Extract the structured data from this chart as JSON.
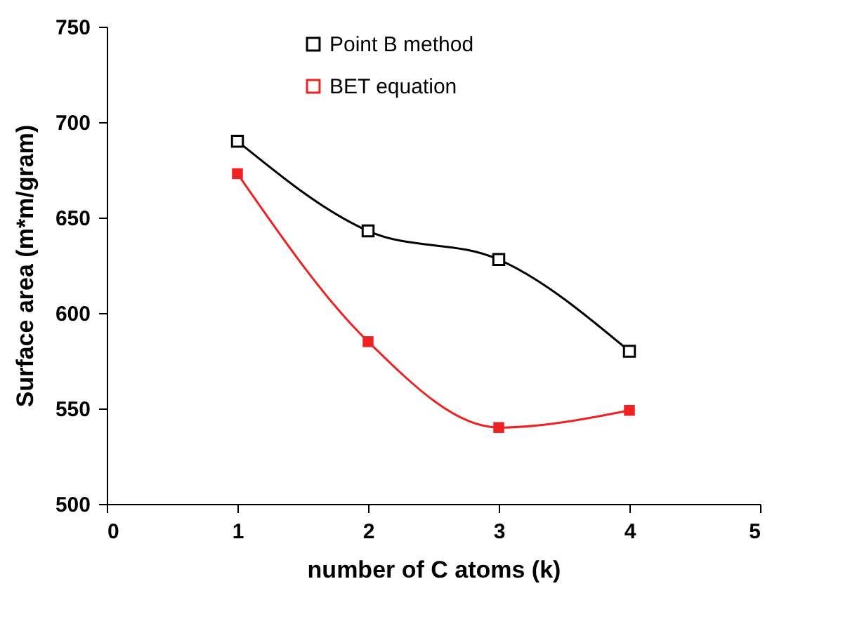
{
  "chart_data": {
    "type": "line",
    "xlabel": "number of C atoms (k)",
    "ylabel": "Surface area (m*m/gram)",
    "x": [
      1,
      2,
      3,
      4
    ],
    "series": [
      {
        "name": "Point B method",
        "color": "#000000",
        "values": [
          690,
          643,
          628,
          580
        ]
      },
      {
        "name": "BET equation",
        "color": "#ee2222",
        "values": [
          673,
          585,
          540,
          549
        ]
      }
    ],
    "xlim": [
      0,
      5
    ],
    "xticks": [
      0,
      1,
      2,
      3,
      4,
      5
    ],
    "ylim": [
      500,
      750
    ],
    "yticks": [
      500,
      550,
      600,
      650,
      700,
      750
    ],
    "grid": false,
    "legend": "top",
    "marker": "square",
    "line_style": "solid"
  }
}
